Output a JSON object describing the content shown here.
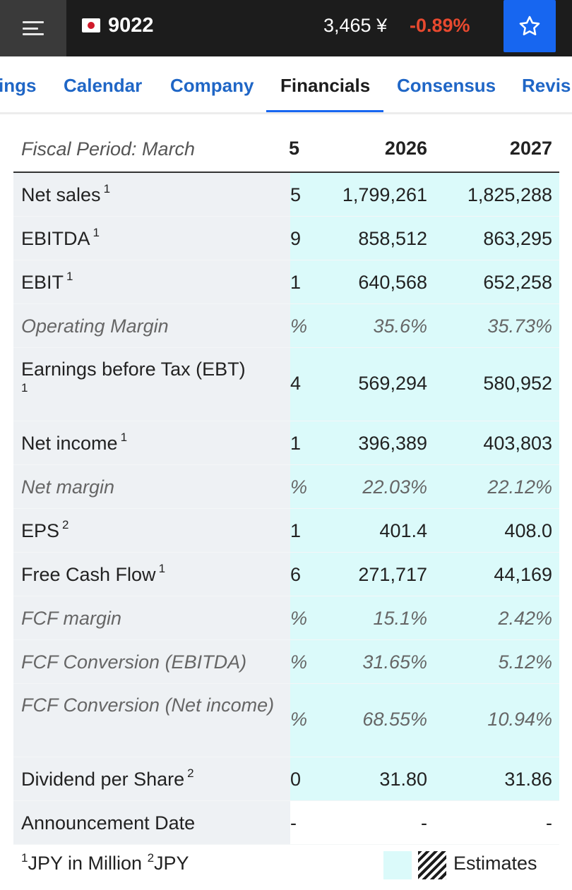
{
  "header": {
    "ticker": "9022",
    "price": "3,465 ¥",
    "change": "-0.89%",
    "menu_icon": "hamburger-menu-icon",
    "flag_icon": "japan-flag-icon",
    "star_icon": "star-outline-icon"
  },
  "tabs": [
    {
      "label": "ings"
    },
    {
      "label": "Calendar"
    },
    {
      "label": "Company"
    },
    {
      "label": "Financials"
    },
    {
      "label": "Consensus"
    },
    {
      "label": "Revisi"
    }
  ],
  "table": {
    "header": {
      "label": "Fiscal Period: March",
      "prev": "5",
      "year1": "2026",
      "year2": "2027"
    },
    "rows": [
      {
        "label": "Net sales",
        "fn": "1",
        "prev": "5",
        "v1": "1,799,261",
        "v2": "1,825,288"
      },
      {
        "label": "EBITDA",
        "fn": "1",
        "prev": "9",
        "v1": "858,512",
        "v2": "863,295"
      },
      {
        "label": "EBIT",
        "fn": "1",
        "prev": "1",
        "v1": "640,568",
        "v2": "652,258"
      },
      {
        "label": "Operating Margin",
        "fn": "",
        "prev": "%",
        "v1": "35.6%",
        "v2": "35.73%"
      },
      {
        "label": "Earnings before Tax (EBT)",
        "fn": "1",
        "prev": "4",
        "v1": "569,294",
        "v2": "580,952"
      },
      {
        "label": "Net income",
        "fn": "1",
        "prev": "1",
        "v1": "396,389",
        "v2": "403,803"
      },
      {
        "label": "Net margin",
        "fn": "",
        "prev": "%",
        "v1": "22.03%",
        "v2": "22.12%"
      },
      {
        "label": "EPS",
        "fn": "2",
        "prev": "1",
        "v1": "401.4",
        "v2": "408.0"
      },
      {
        "label": "Free Cash Flow",
        "fn": "1",
        "prev": "6",
        "v1": "271,717",
        "v2": "44,169"
      },
      {
        "label": "FCF margin",
        "fn": "",
        "prev": "%",
        "v1": "15.1%",
        "v2": "2.42%"
      },
      {
        "label": "FCF Conversion (EBITDA)",
        "fn": "",
        "prev": "%",
        "v1": "31.65%",
        "v2": "5.12%"
      },
      {
        "label": "FCF Conversion (Net income)",
        "fn": "",
        "prev": "%",
        "v1": "68.55%",
        "v2": "10.94%"
      },
      {
        "label": "Dividend per Share",
        "fn": "2",
        "prev": "0",
        "v1": "31.80",
        "v2": "31.86"
      },
      {
        "label": "Announcement Date",
        "fn": "",
        "prev": "-",
        "v1": "-",
        "v2": "-"
      }
    ]
  },
  "footer": {
    "fn1_mark": "1",
    "fn1_text": "JPY in Million",
    "fn2_mark": "2",
    "fn2_text": "JPY",
    "legend_label": "Estimates"
  },
  "colors": {
    "topbar": "#1c1c1c",
    "accent_blue": "#1766f0",
    "negative": "#e8492f",
    "estimate_bg": "#dbfafa",
    "label_bg": "#eef1f4"
  }
}
